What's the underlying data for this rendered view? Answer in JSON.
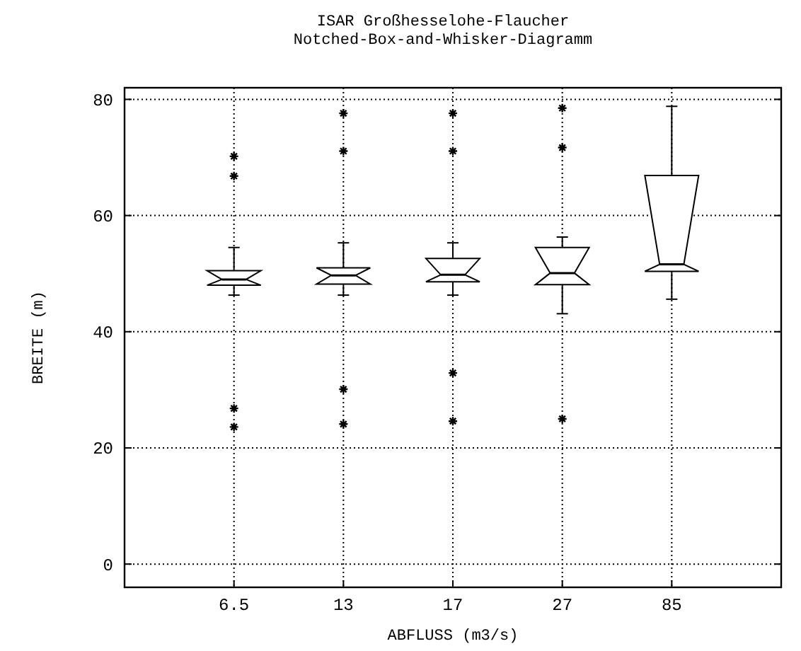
{
  "chart_data": {
    "type": "box",
    "title": "ISAR Großhesselohe-Flaucher",
    "subtitle": "Notched-Box-and-Whisker-Diagramm",
    "xlabel": "ABFLUSS (m3/s)",
    "ylabel": "BREITE (m)",
    "categories": [
      "6.5",
      "13",
      "17",
      "27",
      "85"
    ],
    "boxes": [
      {
        "low": 46.3,
        "q1": 48.0,
        "median": 49.0,
        "q3": 50.5,
        "high": 54.5,
        "outliers": [
          70.2,
          66.8,
          26.8,
          23.6
        ]
      },
      {
        "low": 46.3,
        "q1": 48.2,
        "median": 49.7,
        "q3": 51.0,
        "high": 55.3,
        "outliers": [
          77.6,
          71.1,
          30.1,
          24.1
        ]
      },
      {
        "low": 46.3,
        "q1": 48.6,
        "median": 49.8,
        "q3": 52.6,
        "high": 55.3,
        "outliers": [
          77.6,
          71.1,
          32.9,
          24.6
        ]
      },
      {
        "low": 43.1,
        "q1": 48.1,
        "median": 50.1,
        "q3": 54.5,
        "high": 56.3,
        "outliers": [
          78.5,
          71.7,
          25.0
        ]
      },
      {
        "low": 45.6,
        "q1": 50.4,
        "median": 51.6,
        "q3": 66.9,
        "high": 78.8
      }
    ],
    "ylim": [
      -4,
      82
    ],
    "yticks": [
      0,
      20,
      40,
      60,
      80
    ],
    "grid": true,
    "marker": "star"
  }
}
